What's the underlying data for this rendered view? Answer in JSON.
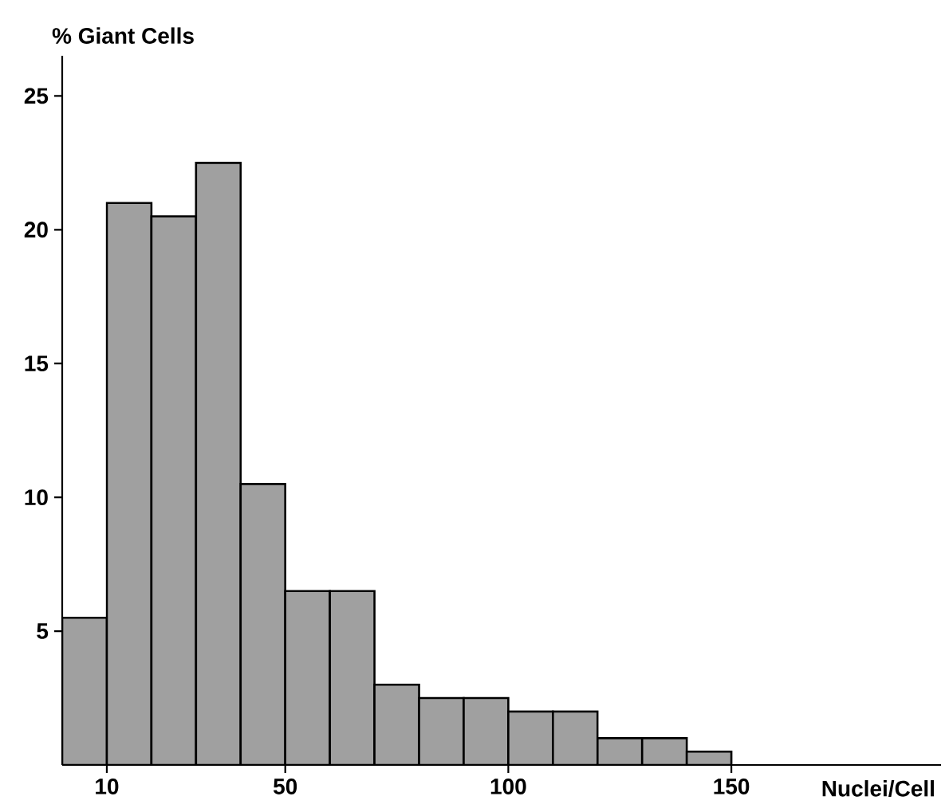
{
  "chart_data": {
    "type": "histogram",
    "xlabel": "Nuclei/Cell",
    "ylabel": "% Giant Cells",
    "bins": [
      0,
      10,
      20,
      30,
      40,
      50,
      60,
      70,
      80,
      90,
      100,
      110,
      120,
      130,
      140,
      150
    ],
    "values": [
      5.5,
      21,
      20.5,
      22.5,
      10.5,
      6.5,
      6.5,
      3,
      2.5,
      2.5,
      2,
      2,
      1,
      1,
      0.5
    ],
    "color": "#a0a0a0",
    "xlim": [
      0,
      197
    ],
    "ylim": [
      0,
      26.5
    ],
    "xticks": [
      10,
      50,
      100,
      150
    ],
    "yticks": [
      5,
      10,
      15,
      20,
      25
    ],
    "grid": false
  }
}
